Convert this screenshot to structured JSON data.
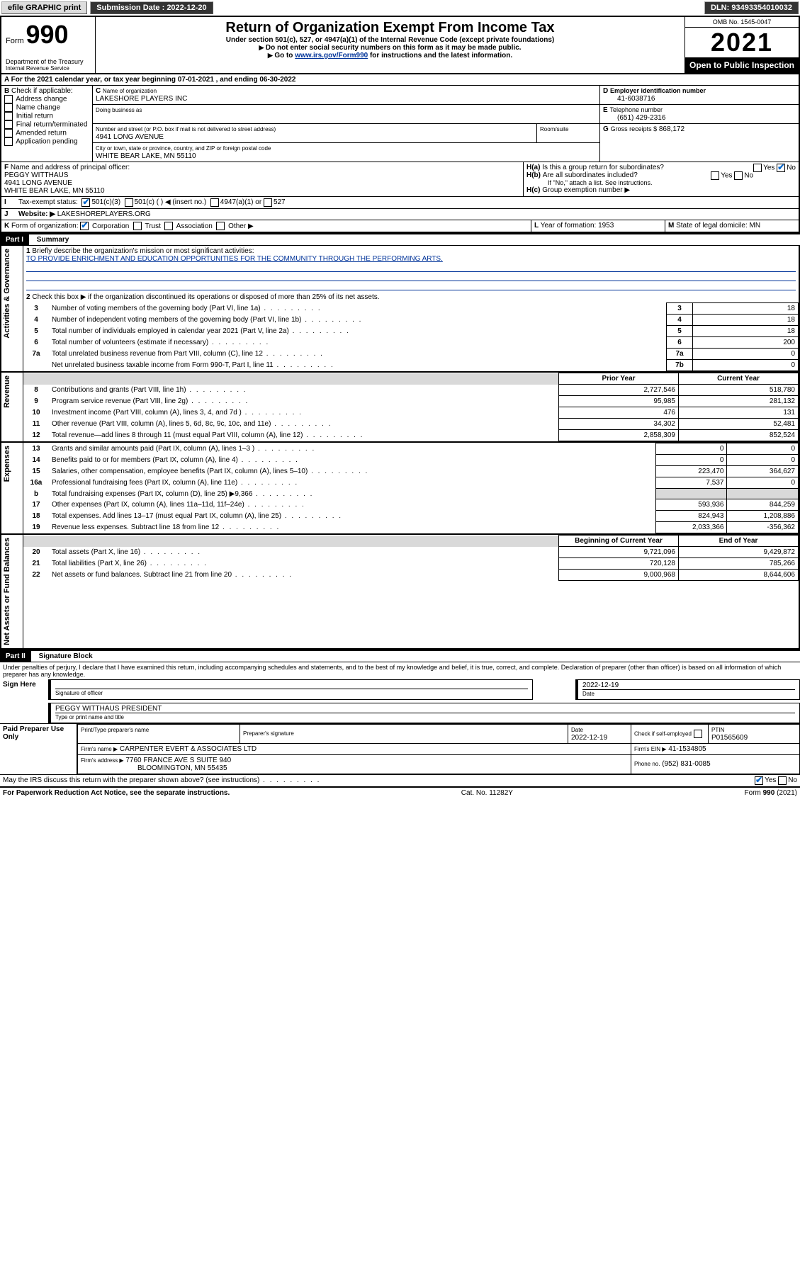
{
  "topbar": {
    "btn1": "efile GRAPHIC print",
    "sub_label": "Submission Date : 2022-12-20",
    "dln_label": "DLN: 93493354010032"
  },
  "header": {
    "form_label": "Form",
    "form_no": "990",
    "dept1": "Department of the Treasury",
    "dept2": "Internal Revenue Service",
    "title": "Return of Organization Exempt From Income Tax",
    "subtitle": "Under section 501(c), 527, or 4947(a)(1) of the Internal Revenue Code (except private foundations)",
    "note1": "Do not enter social security numbers on this form as it may be made public.",
    "note2_pre": "Go to ",
    "note2_link": "www.irs.gov/Form990",
    "note2_post": " for instructions and the latest information.",
    "omb": "OMB No. 1545-0047",
    "year": "2021",
    "open": "Open to Public Inspection"
  },
  "A": {
    "line": "For the 2021 calendar year, or tax year beginning 07-01-2021   , and ending 06-30-2022"
  },
  "B": {
    "label": "Check if applicable:",
    "items": [
      "Address change",
      "Name change",
      "Initial return",
      "Final return/terminated",
      "Amended return",
      "Application pending"
    ]
  },
  "C": {
    "name_label": "Name of organization",
    "name": "LAKESHORE PLAYERS INC",
    "dba_label": "Doing business as",
    "street_label": "Number and street (or P.O. box if mail is not delivered to street address)",
    "room_label": "Room/suite",
    "street": "4941 LONG AVENUE",
    "city_label": "City or town, state or province, country, and ZIP or foreign postal code",
    "city": "WHITE BEAR LAKE, MN  55110"
  },
  "D": {
    "label": "Employer identification number",
    "value": "41-6038716"
  },
  "E": {
    "label": "Telephone number",
    "value": "(651) 429-2316"
  },
  "G": {
    "label": "Gross receipts $",
    "value": "868,172"
  },
  "F": {
    "label": "Name and address of principal officer:",
    "name": "PEGGY WITTHAUS",
    "street": "4941 LONG AVENUE",
    "city": "WHITE BEAR LAKE, MN  55110"
  },
  "H": {
    "a": "Is this a group return for subordinates?",
    "b": "Are all subordinates included?",
    "b_note": "If \"No,\" attach a list. See instructions.",
    "c": "Group exemption number ▶"
  },
  "I": {
    "label": "Tax-exempt status:",
    "c3": "501(c)(3)",
    "c": "501(c) (  ) ◀ (insert no.)",
    "a1": "4947(a)(1) or",
    "s527": "527"
  },
  "J": {
    "label": "Website: ▶",
    "value": "LAKESHOREPLAYERS.ORG"
  },
  "K": {
    "label": "Form of organization:",
    "opts": [
      "Corporation",
      "Trust",
      "Association",
      "Other ▶"
    ]
  },
  "L": {
    "label": "Year of formation:",
    "value": "1953"
  },
  "M": {
    "label": "State of legal domicile:",
    "value": "MN"
  },
  "part1": {
    "title": "Part I",
    "sub": "Summary"
  },
  "summary": {
    "q1": "Briefly describe the organization's mission or most significant activities:",
    "mission": "TO PROVIDE ENRICHMENT AND EDUCATION OPPORTUNITIES FOR THE COMMUNITY THROUGH THE PERFORMING ARTS.",
    "q2": "Check this box ▶      if the organization discontinued its operations or disposed of more than 25% of its net assets.",
    "rows": [
      {
        "n": "3",
        "d": "Number of voting members of the governing body (Part VI, line 1a)",
        "box": "3",
        "v": "18"
      },
      {
        "n": "4",
        "d": "Number of independent voting members of the governing body (Part VI, line 1b)",
        "box": "4",
        "v": "18"
      },
      {
        "n": "5",
        "d": "Total number of individuals employed in calendar year 2021 (Part V, line 2a)",
        "box": "5",
        "v": "18"
      },
      {
        "n": "6",
        "d": "Total number of volunteers (estimate if necessary)",
        "box": "6",
        "v": "200"
      },
      {
        "n": "7a",
        "d": "Total unrelated business revenue from Part VIII, column (C), line 12",
        "box": "7a",
        "v": "0"
      },
      {
        "n": "",
        "d": "Net unrelated business taxable income from Form 990-T, Part I, line 11",
        "box": "7b",
        "v": "0"
      }
    ]
  },
  "fin": {
    "h_b": "b",
    "h_prior": "Prior Year",
    "h_curr": "Current Year",
    "sections": [
      {
        "label": "Revenue",
        "rows": [
          {
            "n": "8",
            "d": "Contributions and grants (Part VIII, line 1h)",
            "p": "2,727,546",
            "c": "518,780"
          },
          {
            "n": "9",
            "d": "Program service revenue (Part VIII, line 2g)",
            "p": "95,985",
            "c": "281,132"
          },
          {
            "n": "10",
            "d": "Investment income (Part VIII, column (A), lines 3, 4, and 7d )",
            "p": "476",
            "c": "131"
          },
          {
            "n": "11",
            "d": "Other revenue (Part VIII, column (A), lines 5, 6d, 8c, 9c, 10c, and 11e)",
            "p": "34,302",
            "c": "52,481"
          },
          {
            "n": "12",
            "d": "Total revenue—add lines 8 through 11 (must equal Part VIII, column (A), line 12)",
            "p": "2,858,309",
            "c": "852,524"
          }
        ]
      },
      {
        "label": "Expenses",
        "rows": [
          {
            "n": "13",
            "d": "Grants and similar amounts paid (Part IX, column (A), lines 1–3 )",
            "p": "0",
            "c": "0"
          },
          {
            "n": "14",
            "d": "Benefits paid to or for members (Part IX, column (A), line 4)",
            "p": "0",
            "c": "0"
          },
          {
            "n": "15",
            "d": "Salaries, other compensation, employee benefits (Part IX, column (A), lines 5–10)",
            "p": "223,470",
            "c": "364,627"
          },
          {
            "n": "16a",
            "d": "Professional fundraising fees (Part IX, column (A), line 11e)",
            "p": "7,537",
            "c": "0"
          },
          {
            "n": "b",
            "d": "Total fundraising expenses (Part IX, column (D), line 25) ▶9,366",
            "p": "",
            "c": "",
            "shade": true
          },
          {
            "n": "17",
            "d": "Other expenses (Part IX, column (A), lines 11a–11d, 11f–24e)",
            "p": "593,936",
            "c": "844,259"
          },
          {
            "n": "18",
            "d": "Total expenses. Add lines 13–17 (must equal Part IX, column (A), line 25)",
            "p": "824,943",
            "c": "1,208,886"
          },
          {
            "n": "19",
            "d": "Revenue less expenses. Subtract line 18 from line 12",
            "p": "2,033,366",
            "c": "-356,362"
          }
        ]
      },
      {
        "label": "Net Assets or Fund Balances",
        "h_p": "Beginning of Current Year",
        "h_c": "End of Year",
        "rows": [
          {
            "n": "20",
            "d": "Total assets (Part X, line 16)",
            "p": "9,721,096",
            "c": "9,429,872"
          },
          {
            "n": "21",
            "d": "Total liabilities (Part X, line 26)",
            "p": "720,128",
            "c": "785,266"
          },
          {
            "n": "22",
            "d": "Net assets or fund balances. Subtract line 21 from line 20",
            "p": "9,000,968",
            "c": "8,644,606"
          }
        ]
      }
    ]
  },
  "part2": {
    "title": "Part II",
    "sub": "Signature Block"
  },
  "sig": {
    "decl": "Under penalties of perjury, I declare that I have examined this return, including accompanying schedules and statements, and to the best of my knowledge and belief, it is true, correct, and complete. Declaration of preparer (other than officer) is based on all information of which preparer has any knowledge.",
    "here": "Sign Here",
    "sig_label": "Signature of officer",
    "date": "2022-12-19",
    "name": "PEGGY WITTHAUS  PRESIDENT",
    "name_label": "Type or print name and title",
    "paid": "Paid Preparer Use Only",
    "p_name_l": "Print/Type preparer's name",
    "p_sig_l": "Preparer's signature",
    "p_date_l": "Date",
    "p_date": "2022-12-19",
    "p_check": "Check       if self-employed",
    "ptin_l": "PTIN",
    "ptin": "P01565609",
    "firm_l": "Firm's name   ▶",
    "firm": "CARPENTER EVERT & ASSOCIATES LTD",
    "ein_l": "Firm's EIN ▶",
    "ein": "41-1534805",
    "addr_l": "Firm's address ▶",
    "addr1": "7760 FRANCE AVE S SUITE 940",
    "addr2": "BLOOMINGTON, MN  55435",
    "phone_l": "Phone no.",
    "phone": "(952) 831-0085",
    "discuss": "May the IRS discuss this return with the preparer shown above? (see instructions)"
  },
  "footer": {
    "left": "For Paperwork Reduction Act Notice, see the separate instructions.",
    "mid": "Cat. No. 11282Y",
    "right": "Form 990 (2021)"
  },
  "yes": "Yes",
  "no": "No"
}
